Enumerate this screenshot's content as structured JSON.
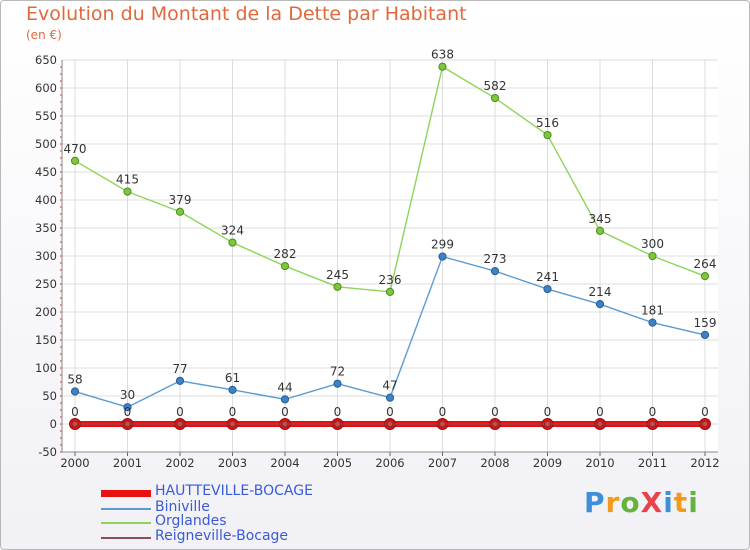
{
  "title": "Evolution du Montant de la Dette par Habitant",
  "unit": "(en €)",
  "logo": {
    "text": "ProXiti",
    "colors": [
      "#3c8fd8",
      "#f19a1e",
      "#64b33f",
      "#e8434a",
      "#3c8fd8",
      "#f19a1e",
      "#64b33f"
    ]
  },
  "chart_data": {
    "type": "line",
    "categories": [
      "2000",
      "2001",
      "2002",
      "2003",
      "2004",
      "2005",
      "2006",
      "2007",
      "2008",
      "2009",
      "2010",
      "2011",
      "2012"
    ],
    "ylim": [
      -50,
      650
    ],
    "yticks": [
      -50,
      0,
      50,
      100,
      150,
      200,
      250,
      300,
      350,
      400,
      450,
      500,
      550,
      600,
      650
    ],
    "grid": true,
    "series": [
      {
        "name": "HAUTTEVILLE-BOCAGE",
        "color": "#e81010",
        "values": [
          0,
          0,
          0,
          0,
          0,
          0,
          0,
          0,
          0,
          0,
          0,
          0,
          0
        ]
      },
      {
        "name": "Biniville",
        "color": "#5b9bd0",
        "values": [
          58,
          30,
          77,
          61,
          44,
          72,
          47,
          299,
          273,
          241,
          214,
          181,
          159
        ]
      },
      {
        "name": "Orglandes",
        "color": "#8ed459",
        "values": [
          470,
          415,
          379,
          324,
          282,
          245,
          236,
          638,
          582,
          516,
          345,
          300,
          264
        ]
      },
      {
        "name": "Reigneville-Bocage",
        "color": "#8a4f5a",
        "values": [
          0,
          0,
          0,
          0,
          0,
          0,
          0,
          0,
          0,
          0,
          0,
          0,
          0
        ]
      }
    ]
  }
}
